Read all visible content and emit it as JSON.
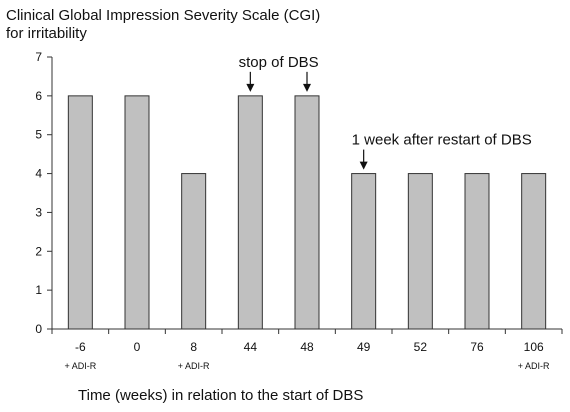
{
  "chart_data": {
    "type": "bar",
    "title": [
      "Clinical Global Impression Severity Scale (CGI)",
      "for irritability"
    ],
    "xlabel": "Time (weeks) in relation to the start of DBS",
    "ylabel": "",
    "ylim": [
      0,
      7
    ],
    "yticks": [
      0,
      1,
      2,
      3,
      4,
      5,
      6,
      7
    ],
    "grid": false,
    "categories": [
      "-6",
      "0",
      "8",
      "44",
      "48",
      "49",
      "52",
      "76",
      "106"
    ],
    "category_sublabels": [
      "+ ADI-R",
      "",
      "+ ADI-R",
      "",
      "",
      "",
      "",
      "",
      "+ ADI-R"
    ],
    "values": [
      6,
      6,
      4,
      6,
      6,
      4,
      4,
      4,
      4
    ],
    "annotations": [
      {
        "text": "stop of DBS",
        "arrows_to": [
          "44",
          "48"
        ]
      },
      {
        "text": "1 week after restart of DBS",
        "arrows_to": [
          "49"
        ]
      }
    ],
    "colors": {
      "bar_fill": "#c0c0c0",
      "bar_stroke": "#333333",
      "axis": "#333333"
    }
  }
}
